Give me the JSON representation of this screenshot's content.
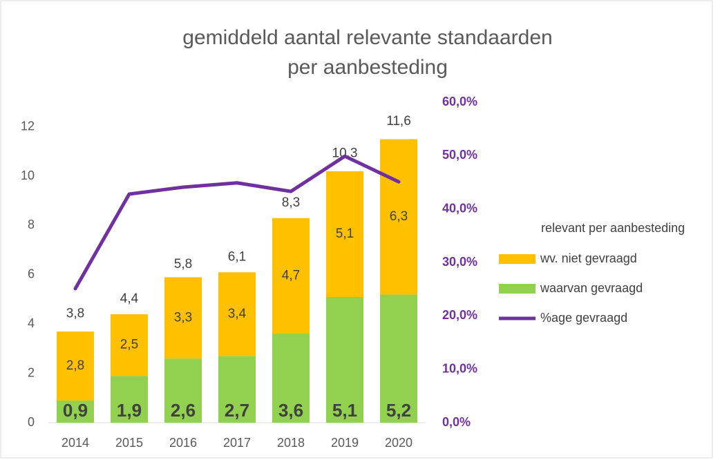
{
  "chart_data": {
    "type": "bar",
    "stacked": true,
    "title": [
      "gemiddeld aantal relevante standaarden",
      "per aanbesteding"
    ],
    "categories": [
      "2014",
      "2015",
      "2016",
      "2017",
      "2018",
      "2019",
      "2020"
    ],
    "legend_title": "relevant per aanbesteding",
    "series": [
      {
        "name": "waarvan gevraagd",
        "type": "bar",
        "color": "#92D050",
        "values": [
          0.9,
          1.9,
          2.6,
          2.7,
          3.6,
          5.1,
          5.2
        ],
        "value_labels": [
          "0,9",
          "1,9",
          "2,6",
          "2,7",
          "3,6",
          "5,1",
          "5,2"
        ]
      },
      {
        "name": "wv. niet gevraagd",
        "type": "bar",
        "color": "#FFC000",
        "values": [
          2.8,
          2.5,
          3.3,
          3.4,
          4.7,
          5.1,
          6.3
        ],
        "value_labels": [
          "2,8",
          "2,5",
          "3,3",
          "3,4",
          "4,7",
          "5,1",
          "6,3"
        ]
      },
      {
        "name": "%age gevraagd",
        "type": "line",
        "axis": "y2",
        "color": "#7030A0",
        "values": [
          25.1,
          42.8,
          44.1,
          44.9,
          43.3,
          49.9,
          45.1
        ]
      }
    ],
    "totals": [
      3.8,
      4.4,
      5.8,
      6.1,
      8.3,
      10.3,
      11.6
    ],
    "total_labels": [
      "3,8",
      "4,4",
      "5,8",
      "6,1",
      "8,3",
      "10,3",
      "11,6"
    ],
    "ylim": [
      0,
      13
    ],
    "yticks": [
      0,
      2,
      4,
      6,
      8,
      10,
      12
    ],
    "y2lim": [
      0,
      60
    ],
    "y2ticks": [
      {
        "value": 0,
        "label": "0,0%"
      },
      {
        "value": 10,
        "label": "10,0%"
      },
      {
        "value": 20,
        "label": "20,0%"
      },
      {
        "value": 30,
        "label": "30,0%"
      },
      {
        "value": 40,
        "label": "40,0%"
      },
      {
        "value": 50,
        "label": "50,0%"
      },
      {
        "value": 60,
        "label": "60,0%"
      }
    ],
    "legend_position": "right"
  }
}
